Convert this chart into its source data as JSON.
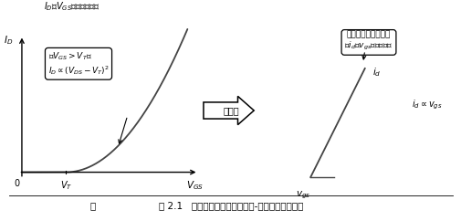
{
  "title": "图 2.1   饱和区中漏极电流与栅极-源极间电压的关系",
  "top_label": "I_D和V_GS不是线性关系",
  "box_left_line1": "当V_GS>V_T时",
  "box_left_line2": "I_D∝(V_DS−V_T)²",
  "arrow_label": "放大图",
  "box_right_line1": "可以看出在微小范围",
  "box_right_line2": "内i_d与v_gs是线性关系",
  "bg_color": "#ffffff",
  "curve_color": "#555555",
  "text_color": "#000000"
}
